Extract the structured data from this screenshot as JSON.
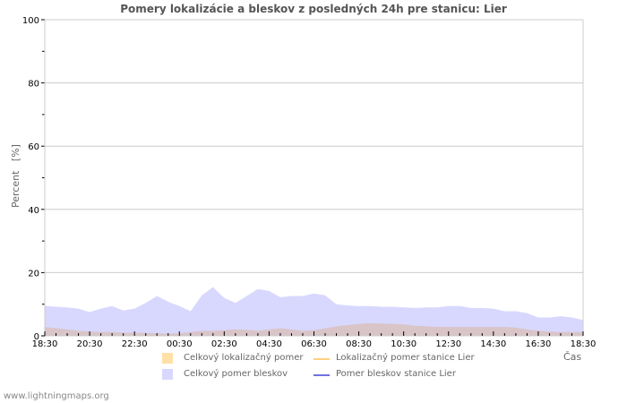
{
  "chart_data": {
    "type": "area",
    "title": "Pomery lokalizácie a bleskov z posledných 24h pre stanicu: Lier",
    "xlabel": "Čas",
    "ylabel": "Percent   [%]",
    "ylim": [
      0,
      100
    ],
    "yticks": [
      0,
      20,
      40,
      60,
      80,
      100
    ],
    "xticks": [
      "18:30",
      "20:30",
      "22:30",
      "00:30",
      "02:30",
      "04:30",
      "06:30",
      "08:30",
      "10:30",
      "12:30",
      "14:30",
      "16:30",
      "18:30"
    ],
    "grid": true,
    "legend_position": "bottom",
    "x": [
      "18:30",
      "19:00",
      "19:30",
      "20:00",
      "20:30",
      "21:00",
      "21:30",
      "22:00",
      "22:30",
      "23:00",
      "23:30",
      "00:00",
      "00:30",
      "01:00",
      "01:30",
      "02:00",
      "02:30",
      "03:00",
      "03:30",
      "04:00",
      "04:30",
      "05:00",
      "05:30",
      "06:00",
      "06:30",
      "07:00",
      "07:30",
      "08:00",
      "08:30",
      "09:00",
      "09:30",
      "10:00",
      "10:30",
      "11:00",
      "11:30",
      "12:00",
      "12:30",
      "13:00",
      "13:30",
      "14:00",
      "14:30",
      "15:00",
      "15:30",
      "16:00",
      "16:30",
      "17:00",
      "17:30",
      "18:00",
      "18:30"
    ],
    "series": [
      {
        "name": "Celkový lokalizačný pomer",
        "type": "area",
        "color": "#ffe0a8",
        "values": [
          2.8,
          2.4,
          2.0,
          1.6,
          1.4,
          1.2,
          1.2,
          1.0,
          1.0,
          0.9,
          0.8,
          0.7,
          0.8,
          1.2,
          1.6,
          1.6,
          1.8,
          2.0,
          1.9,
          1.6,
          2.0,
          2.4,
          2.0,
          1.6,
          1.8,
          2.4,
          3.0,
          3.4,
          3.8,
          4.0,
          3.9,
          3.8,
          3.6,
          3.2,
          3.0,
          2.8,
          2.8,
          2.8,
          2.8,
          2.8,
          2.8,
          2.8,
          2.6,
          2.0,
          1.6,
          1.4,
          1.2,
          1.2,
          1.2
        ]
      },
      {
        "name": "Celkový pomer bleskov",
        "type": "area",
        "color": "#d8d8ff",
        "values": [
          9.5,
          9.2,
          9.0,
          8.6,
          7.5,
          8.6,
          9.4,
          8.0,
          8.6,
          10.4,
          12.6,
          10.8,
          9.4,
          7.8,
          12.8,
          15.4,
          12.0,
          10.4,
          12.6,
          14.8,
          14.2,
          12.2,
          12.6,
          12.6,
          13.4,
          12.8,
          10.0,
          9.6,
          9.4,
          9.4,
          9.2,
          9.2,
          9.0,
          8.8,
          9.0,
          9.0,
          9.4,
          9.4,
          8.8,
          8.8,
          8.6,
          7.8,
          7.8,
          7.2,
          5.8,
          5.8,
          6.2,
          5.8,
          5.0
        ]
      },
      {
        "name": "Lokalizačný pomer stanice Lier",
        "type": "line",
        "color": "#ffd080",
        "values": []
      },
      {
        "name": "Pomer bleskov stanice Lier",
        "type": "line",
        "color": "#7070e0",
        "values": []
      }
    ]
  },
  "legend": {
    "items": [
      {
        "label": "Celkový lokalizačný pomer",
        "color": "#ffe0a8"
      },
      {
        "label": "Lokalizačný pomer stanice Lier",
        "color": "#ffd080"
      },
      {
        "label": "Celkový pomer bleskov",
        "color": "#d8d8ff"
      },
      {
        "label": "Pomer bleskov stanice Lier",
        "color": "#7070e0"
      }
    ]
  },
  "footer": {
    "watermark": "www.lightningmaps.org"
  }
}
